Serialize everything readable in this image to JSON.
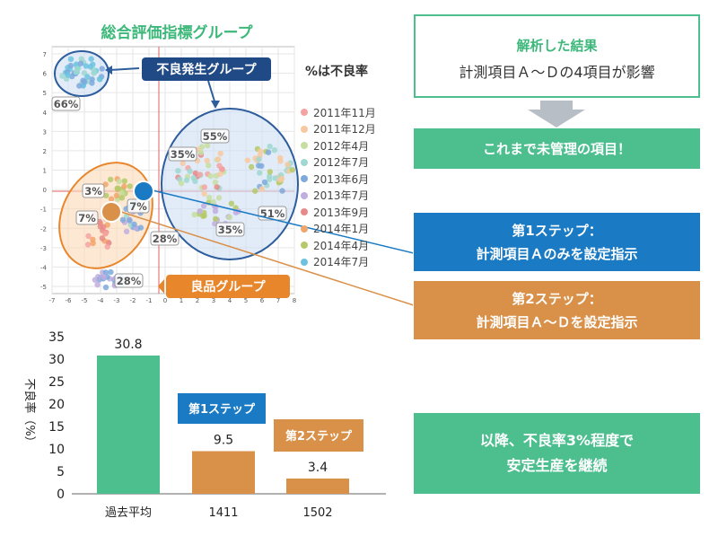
{
  "scatter": {
    "title": "総合評価指標グループ",
    "bad_group_label": "不良発生グループ",
    "good_group_label": "良品グループ",
    "pct_note": "%は不良率",
    "pct_labels": [
      "66%",
      "55%",
      "35%",
      "35%",
      "51%",
      "3%",
      "7%",
      "7%",
      "28%",
      "28%"
    ],
    "x_ticks": [
      "-7",
      "-6",
      "-5",
      "-4",
      "-3",
      "-2",
      "-1",
      "0",
      "1",
      "2",
      "3",
      "4",
      "5",
      "6",
      "7",
      "8"
    ],
    "y_ticks": [
      "7",
      "6",
      "5",
      "4",
      "3",
      "2",
      "1",
      "0",
      "-1",
      "-2",
      "-3",
      "-4",
      "-5"
    ],
    "legend": [
      {
        "label": "2011年11月",
        "color": "#f4a3a3"
      },
      {
        "label": "2011年12月",
        "color": "#f7c9a0"
      },
      {
        "label": "2012年4月",
        "color": "#c6dea0"
      },
      {
        "label": "2012年7月",
        "color": "#9fd8d0"
      },
      {
        "label": "2013年6月",
        "color": "#7ea9dd"
      },
      {
        "label": "2013年7月",
        "color": "#c1aede"
      },
      {
        "label": "2013年9月",
        "color": "#e88a8a"
      },
      {
        "label": "2014年1月",
        "color": "#f2a56a"
      },
      {
        "label": "2014年4月",
        "color": "#b5c96a"
      },
      {
        "label": "2014年7月",
        "color": "#6cc3e0"
      }
    ]
  },
  "result": {
    "title": "解析した結果",
    "text": "計測項目Ａ～Ｄの4項目が影響"
  },
  "unmanaged": "これまで未管理の項目！",
  "step1": {
    "title": "第1ステップ：",
    "text": "計測項目Ａのみを設定指示"
  },
  "step2": {
    "title": "第2ステップ：",
    "text": "計測項目Ａ～Ｄを設定指示"
  },
  "final": {
    "line1": "以降、不良率3%程度で",
    "line2": "安定生産を継続"
  },
  "chart_data": {
    "type": "bar",
    "categories": [
      "過去平均",
      "1411",
      "1502"
    ],
    "values": [
      30.8,
      9.5,
      3.4
    ],
    "value_labels": [
      "30.8",
      "9.5",
      "3.4"
    ],
    "ylabel": "不良率（%）",
    "ylim": [
      0,
      35
    ],
    "yticks": [
      0,
      5,
      10,
      15,
      20,
      25,
      30,
      35
    ],
    "bar_colors": [
      "#4dbf8f",
      "#d9914a",
      "#d9914a"
    ],
    "annotations": [
      {
        "text": "第1ステップ",
        "color": "#1a7bc4",
        "category": "1411"
      },
      {
        "text": "第2ステップ",
        "color": "#d9914a",
        "category": "1502"
      }
    ]
  }
}
